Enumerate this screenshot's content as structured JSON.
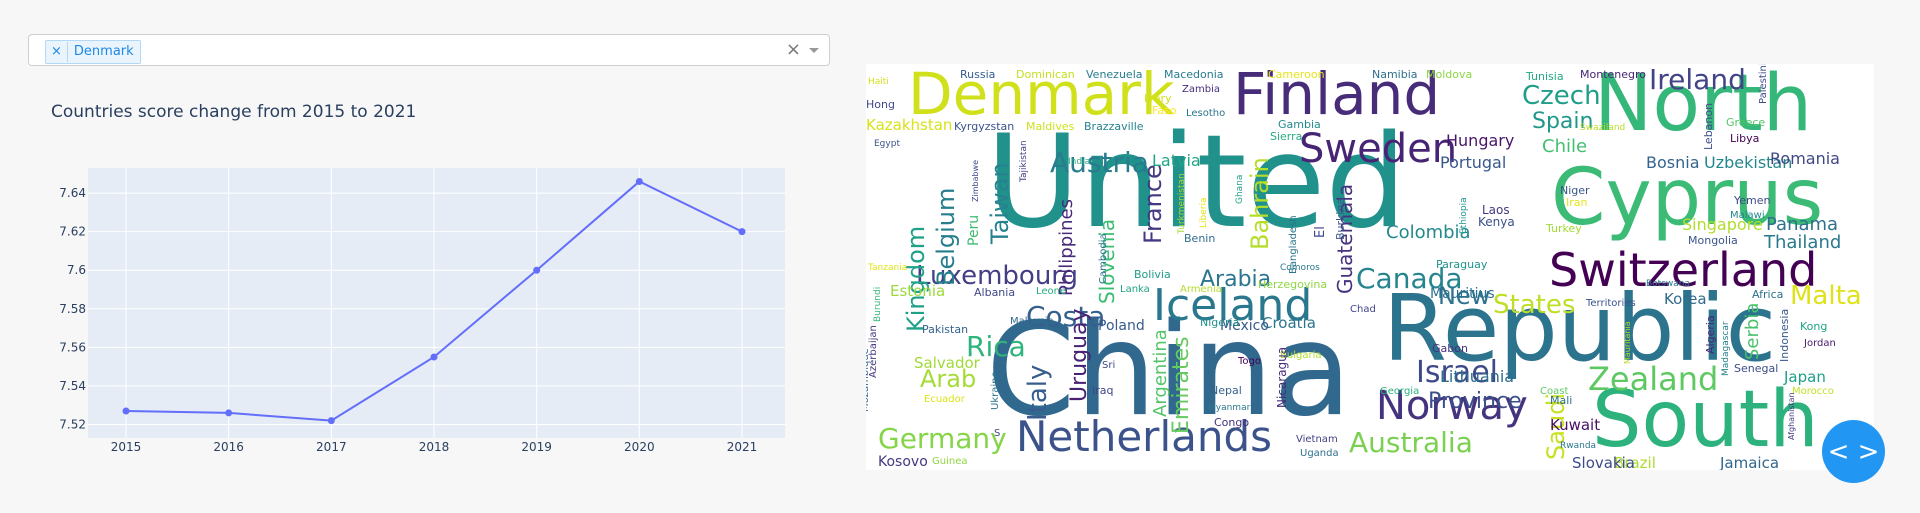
{
  "filter": {
    "selected": [
      "Denmark"
    ],
    "clear_label": "×",
    "tag_remove_label": "×"
  },
  "toggle": {
    "label": "< >"
  },
  "chart_data": {
    "type": "line",
    "title": "Countries score change from 2015 to 2021",
    "xlabel": "",
    "ylabel": "",
    "x": [
      2015,
      2016,
      2017,
      2018,
      2019,
      2020,
      2021
    ],
    "y_ticks": [
      7.52,
      7.54,
      7.56,
      7.58,
      7.6,
      7.62,
      7.64
    ],
    "y_tick_labels": [
      "7.52",
      "7.54",
      "7.56",
      "7.58",
      "7.6",
      "7.62",
      "7.64"
    ],
    "ylim": [
      7.513,
      7.653
    ],
    "series": [
      {
        "values": [
          7.527,
          7.526,
          7.522,
          7.555,
          7.6,
          7.646,
          7.62
        ],
        "color": "#636efa"
      }
    ],
    "grid": true,
    "plot_background": "#e5ecf6"
  },
  "wordcloud": {
    "words": [
      {
        "t": "United",
        "c": "#21918c"
      },
      {
        "t": "China",
        "c": "#31688e"
      },
      {
        "t": "Republic",
        "c": "#2c738e"
      },
      {
        "t": "North",
        "c": "#35b779"
      },
      {
        "t": "Cyprus",
        "c": "#3bbb75"
      },
      {
        "t": "South",
        "c": "#2db27d"
      },
      {
        "t": "Finland",
        "c": "#472c7a"
      },
      {
        "t": "Denmark",
        "c": "#d0e11c"
      },
      {
        "t": "Switzerland",
        "c": "#440154"
      },
      {
        "t": "Netherlands",
        "c": "#3b528b"
      },
      {
        "t": "Iceland",
        "c": "#2a788e"
      },
      {
        "t": "Sweden",
        "c": "#482475"
      },
      {
        "t": "Norway",
        "c": "#46337e"
      },
      {
        "t": "Zealand",
        "c": "#5ec962"
      },
      {
        "t": "Luxembourg",
        "c": "#433e85"
      },
      {
        "t": "Israel",
        "c": "#3e4989"
      },
      {
        "t": "Ireland",
        "c": "#414487"
      },
      {
        "t": "Austria",
        "c": "#287c8e"
      },
      {
        "t": "Canada",
        "c": "#25858e"
      },
      {
        "t": "Australia",
        "c": "#7ad151"
      },
      {
        "t": "Germany",
        "c": "#86d549"
      },
      {
        "t": "Costa",
        "c": "#355f8d"
      },
      {
        "t": "Rica",
        "c": "#2fb47c"
      },
      {
        "t": "Malta",
        "c": "#dde318"
      },
      {
        "t": "Czech",
        "c": "#1f9e89"
      },
      {
        "t": "Spain",
        "c": "#1f988b"
      },
      {
        "t": "Kingdom",
        "c": "#1fa187"
      },
      {
        "t": "Belgium",
        "c": "#277f8e"
      },
      {
        "t": "Taiwan",
        "c": "#26828e"
      },
      {
        "t": "France",
        "c": "#443983"
      },
      {
        "t": "Bahrain",
        "c": "#b5de2b"
      },
      {
        "t": "Guatemala",
        "c": "#46327e"
      },
      {
        "t": "Arabia",
        "c": "#2a768e"
      },
      {
        "t": "Arab",
        "c": "#a5db36"
      },
      {
        "t": "States",
        "c": "#bddf26"
      },
      {
        "t": "New",
        "c": "#2c718e"
      },
      {
        "t": "Italy",
        "c": "#365d8d"
      },
      {
        "t": "Uruguay",
        "c": "#482173"
      },
      {
        "t": "Saudi",
        "c": "#c8e020"
      },
      {
        "t": "Province",
        "c": "#3c4f8a"
      },
      {
        "t": "Slovenia",
        "c": "#3dbc74"
      },
      {
        "t": "Emirates",
        "c": "#65cb5e"
      },
      {
        "t": "Argentina",
        "c": "#54c568"
      },
      {
        "t": "Philippines",
        "c": "#482878"
      },
      {
        "t": "Colombia",
        "c": "#23898e"
      },
      {
        "t": "Portugal",
        "c": "#38588c"
      },
      {
        "t": "Hungary",
        "c": "#481668"
      },
      {
        "t": "Chile",
        "c": "#44bf70"
      },
      {
        "t": "Panama",
        "c": "#2d708e"
      },
      {
        "t": "Thailand",
        "c": "#29798e"
      },
      {
        "t": "Bosnia",
        "c": "#33638d"
      },
      {
        "t": "Uzbekistan",
        "c": "#24878e"
      },
      {
        "t": "Romania",
        "c": "#3f4788"
      },
      {
        "t": "Singapore",
        "c": "#b2dd2d"
      },
      {
        "t": "Kazakhstan",
        "c": "#d8e219"
      },
      {
        "t": "Latvia",
        "c": "#20a486"
      },
      {
        "t": "Estonia",
        "c": "#9bd93c"
      },
      {
        "t": "Salvador",
        "c": "#a0da39"
      },
      {
        "t": "Lithuania",
        "c": "#2e6e8e"
      },
      {
        "t": "Korea",
        "c": "#306a8e"
      },
      {
        "t": "Japan",
        "c": "#1fa088"
      },
      {
        "t": "Brazil",
        "c": "#addc30"
      },
      {
        "t": "Jamaica",
        "c": "#31668e"
      },
      {
        "t": "Slovakia",
        "c": "#3e4a89"
      },
      {
        "t": "Kosovo",
        "c": "#453882"
      },
      {
        "t": "Croatia",
        "c": "#2b748e"
      },
      {
        "t": "Poland",
        "c": "#375b8d"
      },
      {
        "t": "Mexico",
        "c": "#38598c"
      },
      {
        "t": "Mauritius",
        "c": "#2c728e"
      },
      {
        "t": "Kuwait",
        "c": "#471063"
      },
      {
        "t": "Serbia",
        "c": "#4ac16d"
      },
      {
        "t": "Pakistan",
        "c": "#34618d"
      },
      {
        "t": "Russia",
        "c": "#355e8d"
      },
      {
        "t": "Dominican",
        "c": "#c5e021"
      },
      {
        "t": "Venezuela",
        "c": "#287d8e"
      },
      {
        "t": "Macedonia",
        "c": "#287c8e"
      },
      {
        "t": "Namibia",
        "c": "#2e6f8e"
      },
      {
        "t": "Moldova",
        "c": "#8bd646"
      },
      {
        "t": "Tunisia",
        "c": "#22a785"
      },
      {
        "t": "Montenegro",
        "c": "#482576"
      },
      {
        "t": "Cameroon",
        "c": "#e7e419"
      },
      {
        "t": "Haiti",
        "c": "#d5e21a"
      },
      {
        "t": "Hong",
        "c": "#3e4989"
      },
      {
        "t": "Kong",
        "c": "#1fa287"
      },
      {
        "t": "Egypt",
        "c": "#3b528b"
      },
      {
        "t": "Kyrgyzstan",
        "c": "#3a538b"
      },
      {
        "t": "Maldives",
        "c": "#cde11d"
      },
      {
        "t": "Brazzaville",
        "c": "#26828e"
      },
      {
        "t": "Zambia",
        "c": "#472d7b"
      },
      {
        "t": "Lesotho",
        "c": "#2b758e"
      },
      {
        "t": "Ivory",
        "c": "#d2e21b"
      },
      {
        "t": "Faso",
        "c": "#fde725"
      },
      {
        "t": "Gambia",
        "c": "#228c8d"
      },
      {
        "t": "Sierra",
        "c": "#25ac82"
      },
      {
        "t": "Swaziland",
        "c": "#b8de29"
      },
      {
        "t": "Greece",
        "c": "#52c569"
      },
      {
        "t": "Libya",
        "c": "#440154"
      },
      {
        "t": "Lebanon",
        "c": "#3d4e8a"
      },
      {
        "t": "Palestinian",
        "c": "#3e4c8a"
      },
      {
        "t": "Yemen",
        "c": "#3f4889"
      },
      {
        "t": "Malawi",
        "c": "#23888e"
      },
      {
        "t": "Mongolia",
        "c": "#3a548c"
      },
      {
        "t": "Niger",
        "c": "#39568c"
      },
      {
        "t": "Iran",
        "c": "#e5e419"
      },
      {
        "t": "Turkey",
        "c": "#a2da37"
      },
      {
        "t": "Laos",
        "c": "#453882"
      },
      {
        "t": "Kenya",
        "c": "#3c508b"
      },
      {
        "t": "Ethiopia",
        "c": "#1f968b"
      },
      {
        "t": "Bangladesh",
        "c": "#2b758e"
      },
      {
        "t": "El",
        "c": "#404688"
      },
      {
        "t": "Burkina",
        "c": "#39568c"
      },
      {
        "t": "Ghana",
        "c": "#20a386"
      },
      {
        "t": "Turkmenistan",
        "c": "#a8db34"
      },
      {
        "t": "Liberia",
        "c": "#e2e418"
      },
      {
        "t": "Benin",
        "c": "#2f6c8e"
      },
      {
        "t": "Cambodia",
        "c": "#2c728e"
      },
      {
        "t": "India",
        "c": "#2ab07f"
      },
      {
        "t": "Tajikistan",
        "c": "#424186"
      },
      {
        "t": "Zimbabwe",
        "c": "#3f4889"
      },
      {
        "t": "Peru",
        "c": "#3fbc73"
      },
      {
        "t": "Tanzania",
        "c": "#dfe318"
      },
      {
        "t": "Burundi",
        "c": "#34b679"
      },
      {
        "t": "Azerbaijan",
        "c": "#453781"
      },
      {
        "t": "Mozambique",
        "c": "#30698e"
      },
      {
        "t": "Ukraine",
        "c": "#2c728e"
      },
      {
        "t": "Albania",
        "c": "#3f4889"
      },
      {
        "t": "Leone",
        "c": "#29af7f"
      },
      {
        "t": "Malaysia",
        "c": "#306a8e"
      },
      {
        "t": "Bolivia",
        "c": "#1f9a8a"
      },
      {
        "t": "Lanka",
        "c": "#20a386"
      },
      {
        "t": "Armenia",
        "c": "#b2dd2d"
      },
      {
        "t": "Nigeria",
        "c": "#21908d"
      },
      {
        "t": "Herzegovina",
        "c": "#8ed645"
      },
      {
        "t": "Comoros",
        "c": "#297a8e"
      },
      {
        "t": "Paraguay",
        "c": "#20928c"
      },
      {
        "t": "Chad",
        "c": "#404588"
      },
      {
        "t": "Territories",
        "c": "#3b518b"
      },
      {
        "t": "Botswana",
        "c": "#2a788e"
      },
      {
        "t": "Africa",
        "c": "#2d708e"
      },
      {
        "t": "Algeria",
        "c": "#482677"
      },
      {
        "t": "Madagascar",
        "c": "#26828e"
      },
      {
        "t": "Indonesia",
        "c": "#375a8c"
      },
      {
        "t": "Jordan",
        "c": "#481b6d"
      },
      {
        "t": "Mauritania",
        "c": "#b5de2b"
      },
      {
        "t": "Senegal",
        "c": "#3d4d8a"
      },
      {
        "t": "Coast",
        "c": "#5ec962"
      },
      {
        "t": "Morocco",
        "c": "#c2df23"
      },
      {
        "t": "Mali",
        "c": "#2e6e8e"
      },
      {
        "t": "Afghanistan",
        "c": "#443b84"
      },
      {
        "t": "Gabon",
        "c": "#46327e"
      },
      {
        "t": "Georgia",
        "c": "#2ab07f"
      },
      {
        "t": "Bulgaria",
        "c": "#b0dd2f"
      },
      {
        "t": "Nicaragua",
        "c": "#472c7a"
      },
      {
        "t": "Togo",
        "c": "#440154"
      },
      {
        "t": "Iraq",
        "c": "#404588"
      },
      {
        "t": "Sri",
        "c": "#3e4989"
      },
      {
        "t": "Nepal",
        "c": "#34618d"
      },
      {
        "t": "Myanmar",
        "c": "#2a788e"
      },
      {
        "t": "Congo",
        "c": "#46327e"
      },
      {
        "t": "Vietnam",
        "c": "#424086"
      },
      {
        "t": "Uganda",
        "c": "#2e6e8e"
      },
      {
        "t": "Rwanda",
        "c": "#2a778e"
      },
      {
        "t": "Guinea",
        "c": "#90d743"
      },
      {
        "t": "Ecuador",
        "c": "#dde318"
      },
      {
        "t": "S",
        "c": "#3f4889"
      }
    ]
  }
}
